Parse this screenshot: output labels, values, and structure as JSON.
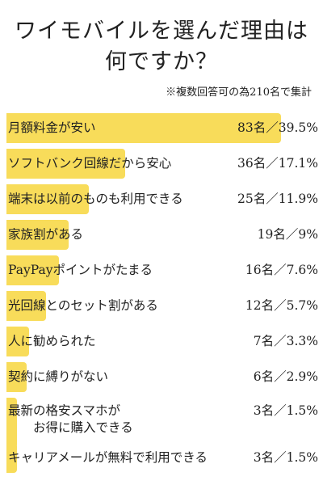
{
  "title_line1": "ワイモバイルを選んだ理由は",
  "title_line2": "何ですか？",
  "note": "※複数回答可の為210名で集計",
  "colors": {
    "bar": "#f8dc5a",
    "text": "#222222"
  },
  "chart_data": {
    "type": "bar",
    "orientation": "horizontal",
    "title": "ワイモバイルを選んだ理由は何ですか？",
    "note": "※複数回答可の為210名で集計",
    "unit": "名",
    "total": 210,
    "categories": [
      "月額料金が安い",
      "ソフトバンク回線だから安心",
      "端末は以前のものも利用できる",
      "家族割がある",
      "PayPayポイントがたまる",
      "光回線とのセット割がある",
      "人に勧められた",
      "契約に縛りがない",
      "最新の格安スマホが\n　　お得に購入できる",
      "キャリアメールが無料で利用できる"
    ],
    "counts": [
      83,
      36,
      25,
      19,
      16,
      12,
      7,
      6,
      3,
      3
    ],
    "percents": [
      39.5,
      17.1,
      11.9,
      9,
      7.6,
      5.7,
      3.3,
      2.9,
      1.5,
      1.5
    ],
    "value_labels": [
      "83名／39.5%",
      "36名／17.1%",
      "25名／11.9%",
      "19名／9%",
      "16名／7.6%",
      "12名／5.7%",
      "7名／3.3%",
      "6名／2.9%",
      "3名／1.5%",
      "3名／1.5%"
    ]
  }
}
